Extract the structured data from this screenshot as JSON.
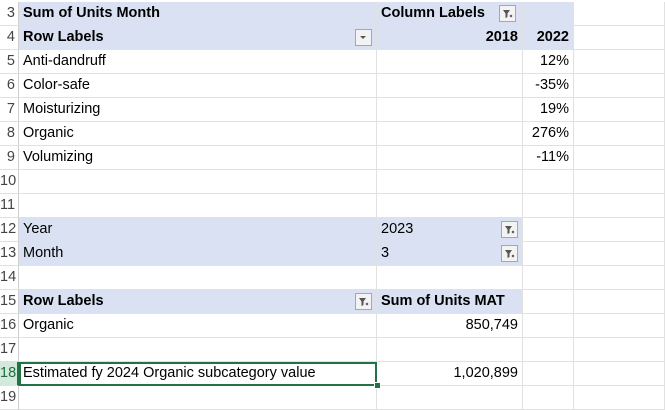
{
  "row_numbers": [
    "3",
    "4",
    "5",
    "6",
    "7",
    "8",
    "9",
    "10",
    "11",
    "12",
    "13",
    "14",
    "15",
    "16",
    "17",
    "18",
    "19"
  ],
  "pivot1": {
    "title": "Sum of Units Month",
    "column_labels": "Column Labels",
    "row_labels": "Row Labels",
    "year_a": "2018",
    "year_b": "2022",
    "rows": [
      {
        "label": "Anti-dandruff",
        "value": "12%"
      },
      {
        "label": "Color-safe",
        "value": "-35%"
      },
      {
        "label": "Moisturizing",
        "value": "19%"
      },
      {
        "label": "Organic",
        "value": "276%"
      },
      {
        "label": "Volumizing",
        "value": "-11%"
      }
    ]
  },
  "filters": {
    "year_label": "Year",
    "year_value": "2023",
    "month_label": "Month",
    "month_value": "3"
  },
  "pivot2": {
    "row_labels": "Row Labels",
    "value_header": "Sum of Units MAT",
    "row_label": "Organic",
    "row_value": "850,749"
  },
  "estimate": {
    "label": "Estimated fy 2024 Organic subcategory value",
    "value": "1,020,899"
  },
  "icons": {
    "filter_active": "filter-funnel-icon",
    "dropdown": "dropdown-arrow-icon"
  },
  "colors": {
    "pivot_header": "#d9e1f2",
    "selection_green": "#217346"
  }
}
